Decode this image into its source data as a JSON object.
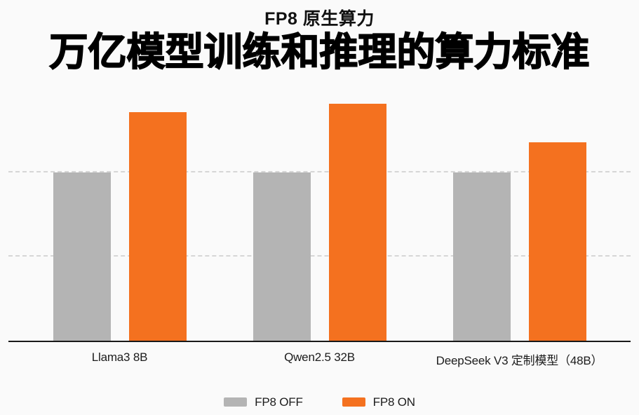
{
  "page": {
    "background": "#fafafa",
    "text_color": "#1c1c1c"
  },
  "chart_data": {
    "type": "bar",
    "subtitle": "FP8 原生算力",
    "title": "万亿模型训练和推理的算力标准",
    "categories": [
      "Llama3 8B",
      "Qwen2.5 32B",
      "DeepSeek V3 定制模型（48B）"
    ],
    "series": [
      {
        "name": "FP8 OFF",
        "color": "#b4b4b4",
        "values": [
          1.0,
          1.0,
          1.0
        ]
      },
      {
        "name": "FP8 ON",
        "color": "#f4711f",
        "values": [
          1.36,
          1.41,
          1.18
        ]
      }
    ],
    "xlabel": "",
    "ylabel": "",
    "ylim": [
      0,
      1.47
    ],
    "gridlines": [
      0.5,
      1.0
    ],
    "grid_style": "dashed",
    "gridline_color": "#d6d6d6",
    "axis_line_color": "#191919",
    "legend_position": "bottom",
    "estimation_note": "no numeric axis tick labels are shown; bar values estimated relative to FP8 OFF = 1.0 using the dashed gridlines"
  }
}
